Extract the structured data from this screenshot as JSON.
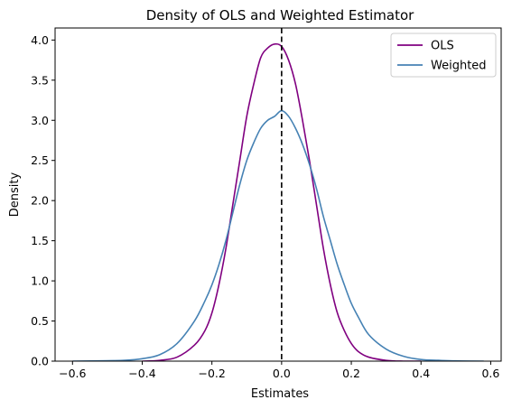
{
  "chart_data": {
    "type": "line",
    "title": "Density of OLS and Weighted Estimator",
    "xlabel": "Estimates",
    "ylabel": "Density",
    "xlim": [
      -0.65,
      0.63
    ],
    "ylim": [
      0,
      4.15
    ],
    "xticks": [
      -0.6,
      -0.4,
      -0.2,
      0.0,
      0.2,
      0.4,
      0.6
    ],
    "xtick_labels": [
      "−0.6",
      "−0.4",
      "−0.2",
      "0.0",
      "0.2",
      "0.4",
      "0.6"
    ],
    "yticks": [
      0.0,
      0.5,
      1.0,
      1.5,
      2.0,
      2.5,
      3.0,
      3.5,
      4.0
    ],
    "ytick_labels": [
      "0.0",
      "0.5",
      "1.0",
      "1.5",
      "2.0",
      "2.5",
      "3.0",
      "3.5",
      "4.0"
    ],
    "grid": false,
    "legend_position": "top-right",
    "vline": {
      "x": 0.0,
      "style": "dashed",
      "color": "#000000"
    },
    "series": [
      {
        "name": "OLS",
        "color": "#800080",
        "x": [
          -0.4,
          -0.35,
          -0.3,
          -0.25,
          -0.22,
          -0.2,
          -0.18,
          -0.16,
          -0.14,
          -0.12,
          -0.1,
          -0.08,
          -0.06,
          -0.04,
          -0.02,
          0.0,
          0.02,
          0.04,
          0.06,
          0.08,
          0.1,
          0.12,
          0.14,
          0.16,
          0.18,
          0.2,
          0.22,
          0.25,
          0.3,
          0.35,
          0.4
        ],
        "y": [
          0.0,
          0.01,
          0.05,
          0.2,
          0.38,
          0.6,
          0.95,
          1.4,
          1.95,
          2.5,
          3.05,
          3.45,
          3.78,
          3.9,
          3.95,
          3.92,
          3.75,
          3.45,
          3.0,
          2.5,
          1.95,
          1.4,
          0.95,
          0.6,
          0.38,
          0.22,
          0.12,
          0.05,
          0.01,
          0.0,
          0.0
        ]
      },
      {
        "name": "Weighted",
        "color": "#4682b4",
        "x": [
          -0.6,
          -0.5,
          -0.45,
          -0.4,
          -0.35,
          -0.3,
          -0.25,
          -0.22,
          -0.2,
          -0.18,
          -0.16,
          -0.14,
          -0.12,
          -0.1,
          -0.08,
          -0.06,
          -0.04,
          -0.02,
          0.0,
          0.02,
          0.04,
          0.06,
          0.08,
          0.1,
          0.12,
          0.14,
          0.16,
          0.18,
          0.2,
          0.22,
          0.25,
          0.3,
          0.35,
          0.4,
          0.45,
          0.5,
          0.58
        ],
        "y": [
          0.0,
          0.005,
          0.01,
          0.03,
          0.08,
          0.22,
          0.5,
          0.75,
          0.95,
          1.2,
          1.5,
          1.85,
          2.2,
          2.5,
          2.72,
          2.9,
          3.0,
          3.05,
          3.12,
          3.05,
          2.9,
          2.7,
          2.45,
          2.15,
          1.8,
          1.5,
          1.2,
          0.95,
          0.72,
          0.55,
          0.33,
          0.15,
          0.06,
          0.02,
          0.01,
          0.003,
          0.0
        ]
      }
    ]
  }
}
